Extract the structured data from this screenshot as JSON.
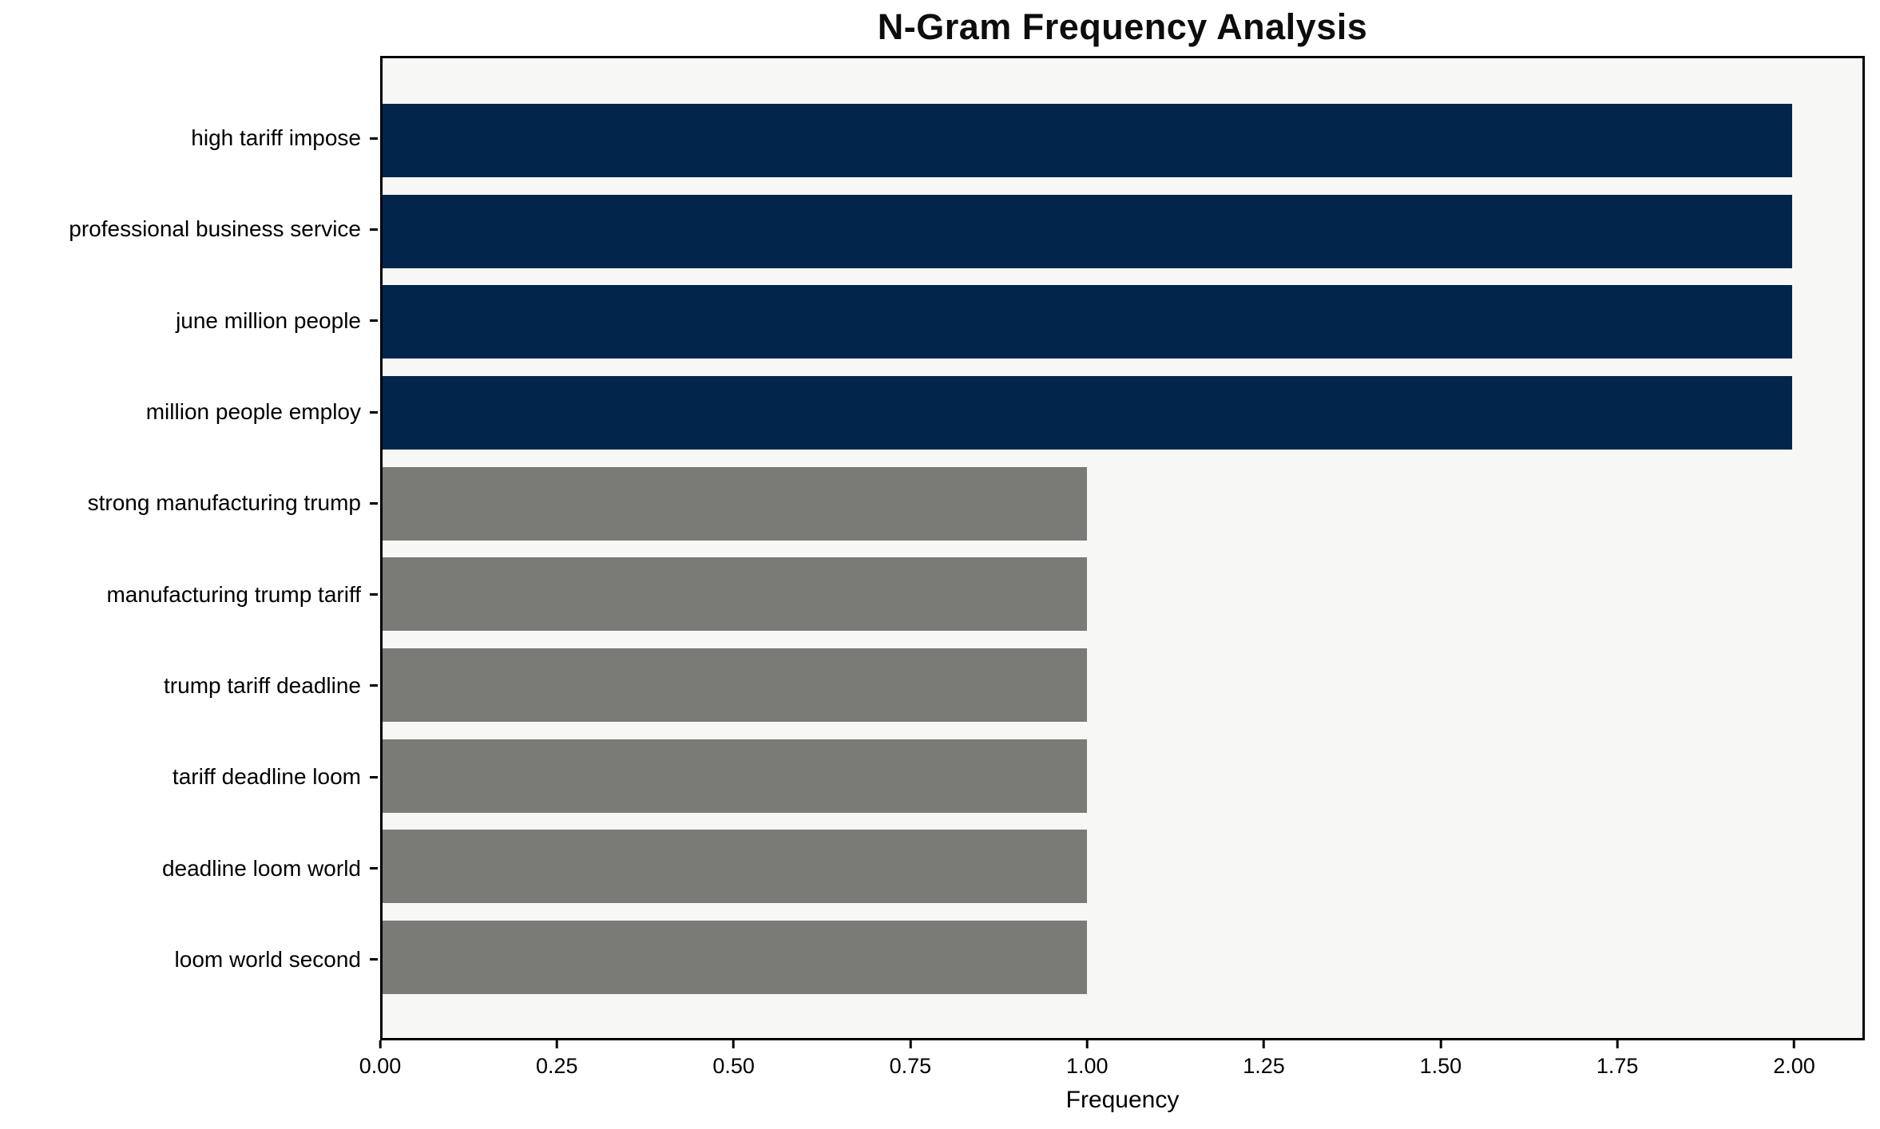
{
  "figure": {
    "title": "N-Gram Frequency Analysis",
    "xlabel": "Frequency"
  },
  "chart_data": {
    "type": "bar",
    "orientation": "horizontal",
    "title": "N-Gram Frequency Analysis",
    "xlabel": "Frequency",
    "ylabel": "",
    "categories": [
      "high tariff impose",
      "professional business service",
      "june million people",
      "million people employ",
      "strong manufacturing trump",
      "manufacturing trump tariff",
      "trump tariff deadline",
      "tariff deadline loom",
      "deadline loom world",
      "loom world second"
    ],
    "values": [
      2,
      2,
      2,
      2,
      1,
      1,
      1,
      1,
      1,
      1
    ],
    "bar_colors": [
      "#02254c",
      "#02254c",
      "#02254c",
      "#02254c",
      "#7a7a76",
      "#7a7a76",
      "#7a7a76",
      "#7a7a76",
      "#7a7a76",
      "#7a7a76"
    ],
    "xlim": [
      0,
      2.1
    ],
    "x_ticks": [
      0,
      0.25,
      0.5,
      0.75,
      1.0,
      1.25,
      1.5,
      1.75,
      2.0
    ],
    "x_tick_labels": [
      "0.00",
      "0.25",
      "0.50",
      "0.75",
      "1.00",
      "1.25",
      "1.50",
      "1.75",
      "2.00"
    ],
    "grid": false,
    "legend": null,
    "colors": {
      "bar_highlight": "#02254c",
      "bar_default": "#7a7a76",
      "axes_background": "#f7f7f6",
      "figure_background": "#ffffff",
      "spine": "#000000",
      "text": "#000000"
    }
  }
}
